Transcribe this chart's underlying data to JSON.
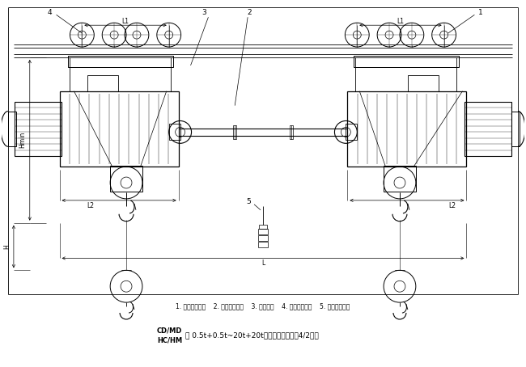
{
  "bg_color": "#ffffff",
  "line_color": "#000000",
  "fig_width": 6.5,
  "fig_height": 4.54,
  "title_line1": "CD/MD",
  "title_line2": "HC/HM",
  "title_model": "型 0.5t+0.5t~20t+20t双筋点电动葫芦（4/2绳）",
  "legend_text": "1. 正相电动葫芦    2. 同步机减速机    3. 连接装置    4. 反相电动葫芦    5. 同步电气控制",
  "dim_L1_left": "L1",
  "dim_L1_right": "L1",
  "dim_L2_left": "L2",
  "dim_L2_right": "L2",
  "dim_L": "L",
  "dim_Hmin": "Hmin",
  "dim_H": "H",
  "n1": "1",
  "n2": "2",
  "n3": "3",
  "n4": "4",
  "n5": "5"
}
